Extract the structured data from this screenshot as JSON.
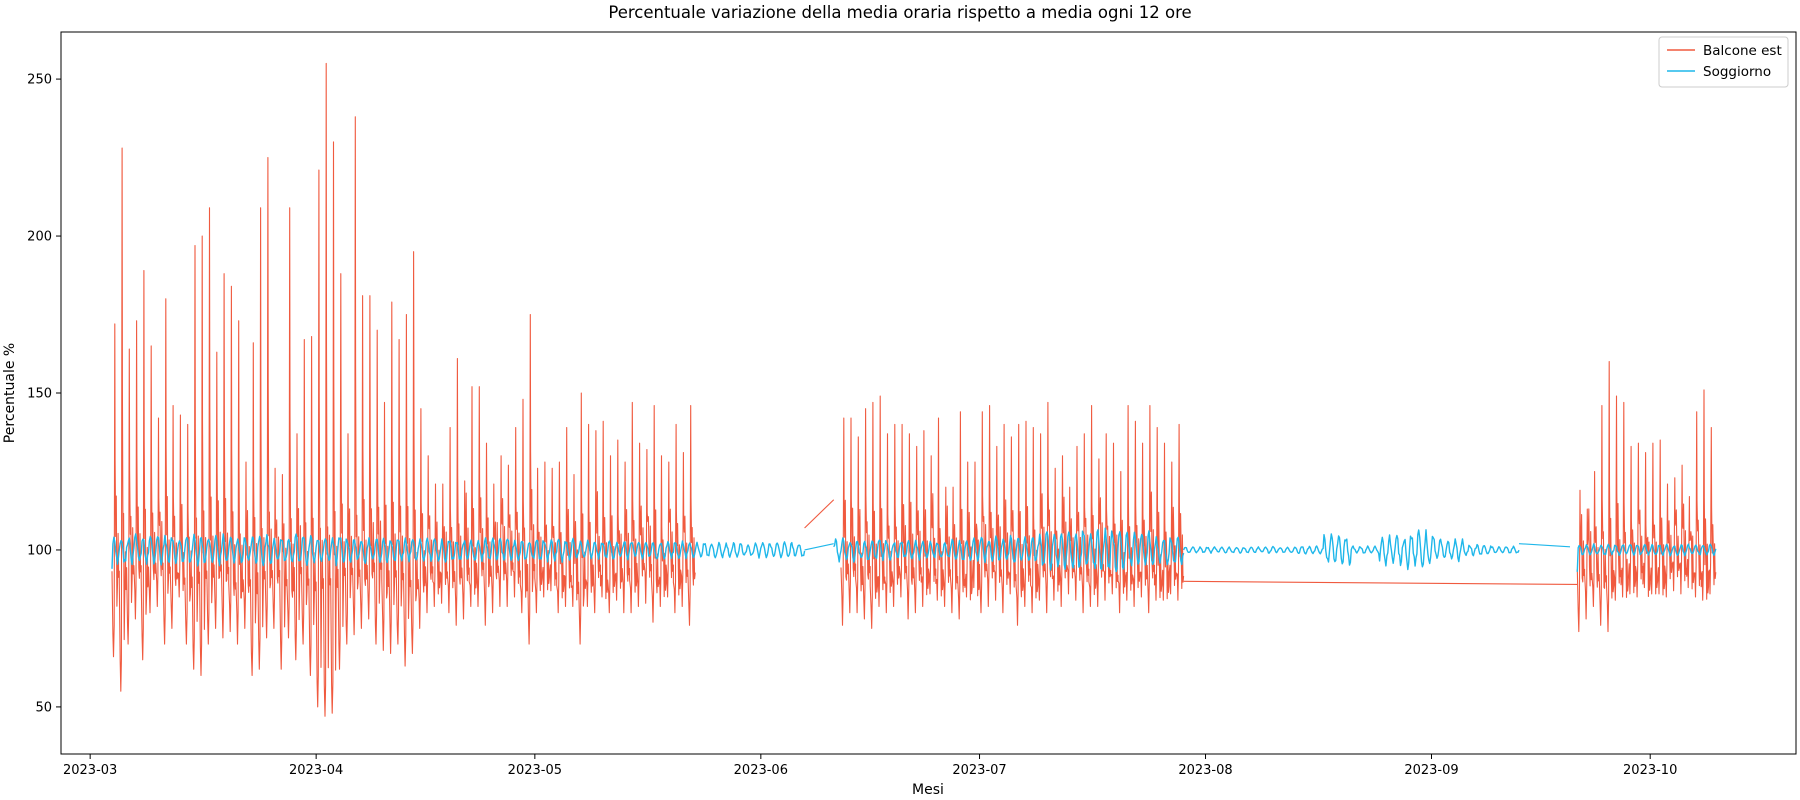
{
  "chart_data": {
    "type": "line",
    "title": "Percentuale variazione della media oraria rispetto a media ogni 12 ore",
    "xlabel": "Mesi",
    "ylabel": "Percentuale %",
    "xlim": [
      "2023-02-25",
      "2023-10-21"
    ],
    "ylim": [
      35,
      265
    ],
    "x_ticks": [
      "2023-03-01",
      "2023-04-01",
      "2023-05-01",
      "2023-06-01",
      "2023-07-01",
      "2023-08-01",
      "2023-09-01",
      "2023-10-01"
    ],
    "x_tick_labels": [
      "2023-03",
      "2023-04",
      "2023-05",
      "2023-06",
      "2023-07",
      "2023-08",
      "2023-09",
      "2023-10"
    ],
    "y_ticks": [
      50,
      100,
      150,
      200,
      250
    ],
    "grid": false,
    "legend_position": "top-right",
    "sampling": "hourly (shown approximated as daily cycle: high and low per day)",
    "series": [
      {
        "name": "Balcone est",
        "color": "#f05a3f",
        "segments": [
          {
            "x_start": "2023-03-04",
            "peaks": [
              172,
              228,
              164,
              173,
              189,
              165,
              142,
              180,
              146,
              143,
              140,
              197,
              200,
              209,
              163,
              188,
              184,
              173,
              128,
              166,
              209,
              225,
              126,
              124,
              209,
              137,
              167,
              168,
              221,
              255,
              230,
              188,
              137,
              238,
              181,
              181,
              170,
              147,
              179,
              167,
              175,
              195,
              145,
              130,
              121,
              121,
              139,
              161,
              122,
              152,
              152,
              134,
              121,
              130,
              127,
              139,
              148,
              175,
              126,
              128,
              126,
              128,
              139,
              124,
              150,
              140,
              138,
              141,
              130,
              135,
              128,
              147,
              134,
              132,
              146,
              130,
              128,
              140,
              131,
              146
            ],
            "lows": [
              66,
              55,
              70,
              78,
              65,
              80,
              82,
              70,
              75,
              85,
              70,
              62,
              60,
              70,
              75,
              72,
              74,
              70,
              75,
              60,
              62,
              72,
              75,
              62,
              72,
              65,
              70,
              60,
              50,
              47,
              48,
              62,
              70,
              73,
              75,
              78,
              70,
              68,
              67,
              70,
              63,
              67,
              75,
              80,
              82,
              83,
              80,
              76,
              78,
              82,
              82,
              76,
              80,
              82,
              82,
              85,
              80,
              70,
              80,
              85,
              87,
              80,
              82,
              82,
              70,
              82,
              80,
              85,
              80,
              84,
              80,
              80,
              82,
              83,
              77,
              82,
              85,
              80,
              82,
              76
            ]
          },
          {
            "x_start": "2023-06-12",
            "x_end": "2023-07-29",
            "peaks": [
              142,
              142,
              136,
              145,
              147,
              149,
              137,
              140,
              140,
              137,
              133,
              138,
              130,
              142,
              120,
              120,
              144,
              128,
              128,
              144,
              146,
              133,
              140,
              136,
              140,
              141,
              139,
              137,
              147,
              126,
              130,
              120,
              133,
              137,
              146,
              129,
              137,
              134,
              125,
              146,
              141,
              134,
              146,
              139,
              134,
              128,
              140
            ],
            "lows": [
              76,
              80,
              80,
              78,
              75,
              82,
              80,
              82,
              85,
              78,
              80,
              82,
              86,
              84,
              82,
              80,
              78,
              85,
              88,
              80,
              82,
              84,
              80,
              86,
              76,
              82,
              80,
              84,
              80,
              84,
              82,
              86,
              84,
              80,
              82,
              82,
              84,
              86,
              80,
              84,
              82,
              85,
              80,
              84,
              84,
              86,
              84
            ]
          },
          {
            "x_start": "2023-09-21",
            "x_end": "2023-10-10",
            "peaks": [
              119,
              113,
              125,
              146,
              160,
              149,
              147,
              133,
              134,
              131,
              134,
              135,
              121,
              123,
              127,
              117,
              144,
              151,
              139
            ],
            "lows": [
              74,
              78,
              82,
              76,
              74,
              84,
              85,
              86,
              85,
              88,
              86,
              86,
              85,
              87,
              86,
              88,
              85,
              84,
              86
            ]
          }
        ],
        "gap_connectors": [
          {
            "from": [
              "2023-06-07",
              107
            ],
            "to": [
              "2023-06-11",
              116
            ]
          },
          {
            "from": [
              "2023-07-29",
              90
            ],
            "to": [
              "2023-09-21",
              89
            ]
          }
        ]
      },
      {
        "name": "Soggiorno",
        "color": "#1fb7ea",
        "baseline": 100,
        "segments": [
          {
            "x_start": "2023-03-04",
            "x_end": "2023-06-07",
            "daily_amplitude": [
              4,
              4,
              4,
              4,
              3.5,
              3,
              3,
              3,
              2.5,
              2.5,
              2,
              2
            ],
            "start_value": 94
          },
          {
            "x_start": "2023-06-11",
            "x_end": "2023-07-29",
            "daily_amplitude": [
              3,
              3,
              2.5,
              2.5,
              3,
              3.5,
              4,
              5,
              6,
              6,
              5,
              4
            ],
            "start_value": 101
          },
          {
            "x_start": "2023-07-29",
            "x_end": "2023-09-13",
            "daily_amplitude": [
              0.8,
              0.8,
              0.8,
              1,
              1,
              4,
              1,
              4,
              5,
              3,
              1.5,
              1
            ],
            "start_value": 100
          },
          {
            "x_start": "2023-09-21",
            "x_end": "2023-10-10",
            "daily_amplitude": [
              1.5,
              1.5,
              1.5,
              1.5
            ],
            "start_value": 93
          }
        ],
        "gap_connectors": [
          {
            "from": [
              "2023-06-07",
              100
            ],
            "to": [
              "2023-06-11",
              102
            ]
          },
          {
            "from": [
              "2023-09-13",
              102
            ],
            "to": [
              "2023-09-20",
              101
            ]
          }
        ]
      }
    ]
  }
}
